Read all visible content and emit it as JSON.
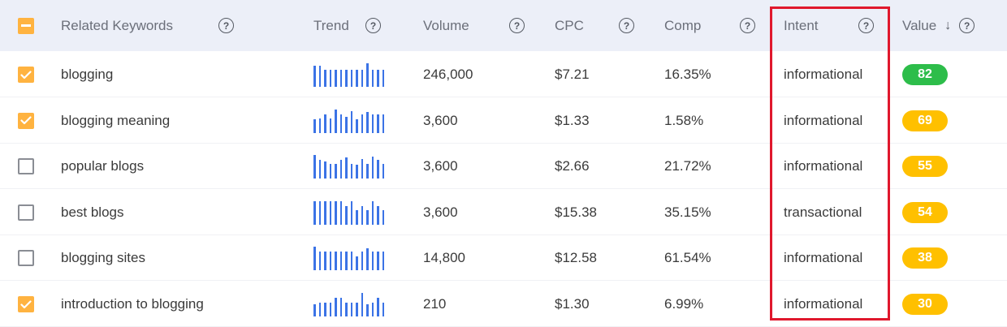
{
  "header": {
    "select_all_state": "indeterminate",
    "columns": {
      "keyword": "Related Keywords",
      "trend": "Trend",
      "volume": "Volume",
      "cpc": "CPC",
      "comp": "Comp",
      "intent": "Intent",
      "value": "Value"
    },
    "help_glyph": "?",
    "sort_glyph": "↓"
  },
  "colors": {
    "accent_checkbox": "#ffb340",
    "trend_bar": "#3b73e6",
    "badge_green": "#2dbd4a",
    "badge_yellow": "#ffc000",
    "highlight_border": "#e0182d",
    "header_bg": "#eceff8"
  },
  "rows": [
    {
      "checked": true,
      "keyword": "blogging",
      "trend": [
        0.85,
        0.85,
        0.7,
        0.7,
        0.7,
        0.7,
        0.7,
        0.7,
        0.7,
        0.7,
        0.95,
        0.7,
        0.7,
        0.7
      ],
      "volume": "246,000",
      "cpc": "$7.21",
      "comp": "16.35%",
      "intent": "informational",
      "value": "82",
      "value_color": "green"
    },
    {
      "checked": true,
      "keyword": "blogging meaning",
      "trend": [
        0.55,
        0.6,
        0.75,
        0.6,
        0.95,
        0.75,
        0.65,
        0.9,
        0.55,
        0.75,
        0.85,
        0.75,
        0.75,
        0.75
      ],
      "volume": "3,600",
      "cpc": "$1.33",
      "comp": "1.58%",
      "intent": "informational",
      "value": "69",
      "value_color": "yellow"
    },
    {
      "checked": false,
      "keyword": "popular blogs",
      "trend": [
        0.95,
        0.75,
        0.7,
        0.6,
        0.6,
        0.75,
        0.85,
        0.6,
        0.55,
        0.8,
        0.6,
        0.9,
        0.75,
        0.6
      ],
      "volume": "3,600",
      "cpc": "$2.66",
      "comp": "21.72%",
      "intent": "informational",
      "value": "55",
      "value_color": "yellow"
    },
    {
      "checked": false,
      "keyword": "best blogs",
      "trend": [
        0.95,
        0.95,
        0.95,
        0.95,
        0.95,
        0.95,
        0.75,
        0.95,
        0.6,
        0.75,
        0.6,
        0.95,
        0.75,
        0.6
      ],
      "volume": "3,600",
      "cpc": "$15.38",
      "comp": "35.15%",
      "intent": "transactional",
      "value": "54",
      "value_color": "yellow"
    },
    {
      "checked": false,
      "keyword": "blogging sites",
      "trend": [
        0.95,
        0.75,
        0.75,
        0.75,
        0.75,
        0.75,
        0.75,
        0.75,
        0.55,
        0.75,
        0.9,
        0.75,
        0.75,
        0.75
      ],
      "volume": "14,800",
      "cpc": "$12.58",
      "comp": "61.54%",
      "intent": "informational",
      "value": "38",
      "value_color": "yellow"
    },
    {
      "checked": true,
      "keyword": "introduction to blogging",
      "trend": [
        0.5,
        0.55,
        0.55,
        0.55,
        0.75,
        0.75,
        0.55,
        0.55,
        0.55,
        0.95,
        0.5,
        0.55,
        0.75,
        0.55
      ],
      "volume": "210",
      "cpc": "$1.30",
      "comp": "6.99%",
      "intent": "informational",
      "value": "30",
      "value_color": "yellow"
    }
  ]
}
